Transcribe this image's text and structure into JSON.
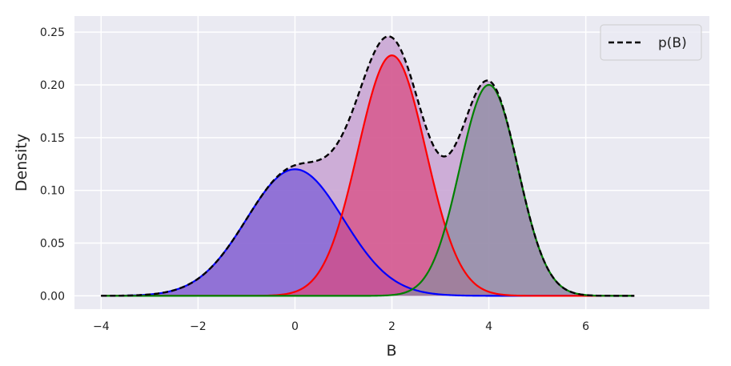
{
  "chart_data": {
    "type": "area",
    "xlabel": "B",
    "ylabel": "Density",
    "xlim": [
      -4.55,
      8.55
    ],
    "ylim": [
      -0.0126,
      0.2653
    ],
    "x_domain": [
      -4,
      7
    ],
    "x_ticks": [
      -4,
      -2,
      0,
      2,
      4,
      6
    ],
    "y_ticks": [
      0.0,
      0.05,
      0.1,
      0.15,
      0.2,
      0.25
    ],
    "x_tick_labels": [
      "−4",
      "−2",
      "0",
      "2",
      "4",
      "6"
    ],
    "y_tick_labels": [
      "0.00",
      "0.05",
      "0.10",
      "0.15",
      "0.20",
      "0.25"
    ],
    "grid": true,
    "legend_position": "top-right",
    "background_color": "#eaeaf2",
    "components": [
      {
        "mean": 0,
        "sd": 1.0,
        "weight": 0.3,
        "peak": 0.12,
        "line_color": "#0000ff",
        "fill_color": "#7a5cd6"
      },
      {
        "mean": 2,
        "sd": 0.7,
        "weight": 0.4,
        "peak": 0.228,
        "line_color": "#ff0000",
        "fill_color": "#d94a80"
      },
      {
        "mean": 4,
        "sd": 0.6,
        "weight": 0.3,
        "peak": 0.2,
        "line_color": "#008000",
        "fill_color": "#8a8aa0"
      }
    ],
    "mixture": {
      "name": "p(B)",
      "line_color": "#000000",
      "line_style": "dashed",
      "fill_color": "#c8a2d2"
    }
  }
}
